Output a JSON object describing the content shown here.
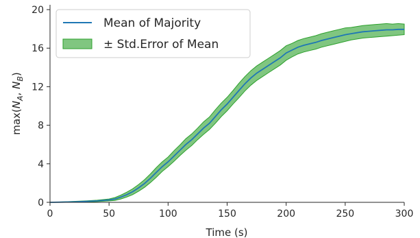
{
  "chart_data": {
    "type": "line",
    "xlabel": "Time (s)",
    "ylabel": "max(N_A, N_B)",
    "ylabel_parts": {
      "prefix": "max(",
      "n1": "N",
      "sub1": "A",
      "sep": ", ",
      "n2": "N",
      "sub2": "B",
      "suffix": ")"
    },
    "xlim": [
      0,
      300
    ],
    "ylim": [
      0,
      20.5
    ],
    "xticks": [
      0,
      50,
      100,
      150,
      200,
      250,
      300
    ],
    "yticks": [
      0,
      4,
      8,
      12,
      16,
      20
    ],
    "grid": false,
    "legend_position": "top-left",
    "series": [
      {
        "name": "Mean of Majority",
        "kind": "line",
        "color": "#1f77b4",
        "x": [
          0,
          10,
          20,
          30,
          40,
          50,
          55,
          60,
          65,
          70,
          75,
          80,
          85,
          90,
          95,
          100,
          105,
          110,
          115,
          120,
          125,
          130,
          135,
          140,
          145,
          150,
          155,
          160,
          165,
          170,
          175,
          180,
          185,
          190,
          195,
          200,
          205,
          210,
          215,
          220,
          225,
          230,
          235,
          240,
          245,
          250,
          255,
          260,
          265,
          270,
          275,
          280,
          285,
          290,
          295,
          300
        ],
        "y": [
          0,
          0.02,
          0.05,
          0.1,
          0.15,
          0.25,
          0.35,
          0.55,
          0.8,
          1.1,
          1.5,
          1.95,
          2.5,
          3.1,
          3.7,
          4.2,
          4.8,
          5.4,
          6.0,
          6.5,
          7.1,
          7.7,
          8.2,
          8.9,
          9.6,
          10.2,
          10.9,
          11.6,
          12.3,
          12.9,
          13.4,
          13.8,
          14.2,
          14.6,
          15.0,
          15.5,
          15.8,
          16.1,
          16.3,
          16.45,
          16.6,
          16.8,
          16.95,
          17.1,
          17.25,
          17.4,
          17.5,
          17.6,
          17.7,
          17.75,
          17.8,
          17.85,
          17.9,
          17.9,
          17.95,
          17.95
        ]
      },
      {
        "name": "± Std.Error of Mean",
        "kind": "band",
        "color": "#2ca02c",
        "x": [
          0,
          10,
          20,
          30,
          40,
          50,
          55,
          60,
          65,
          70,
          75,
          80,
          85,
          90,
          95,
          100,
          105,
          110,
          115,
          120,
          125,
          130,
          135,
          140,
          145,
          150,
          155,
          160,
          165,
          170,
          175,
          180,
          185,
          190,
          195,
          200,
          205,
          210,
          215,
          220,
          225,
          230,
          235,
          240,
          245,
          250,
          255,
          260,
          265,
          270,
          275,
          280,
          285,
          290,
          295,
          300
        ],
        "lower": [
          0,
          0.0,
          0.0,
          0.05,
          0.08,
          0.15,
          0.2,
          0.35,
          0.55,
          0.8,
          1.15,
          1.55,
          2.05,
          2.6,
          3.2,
          3.7,
          4.25,
          4.85,
          5.4,
          5.9,
          6.5,
          7.05,
          7.55,
          8.2,
          8.9,
          9.5,
          10.2,
          10.85,
          11.55,
          12.15,
          12.65,
          13.05,
          13.45,
          13.85,
          14.25,
          14.75,
          15.1,
          15.4,
          15.6,
          15.75,
          15.9,
          16.1,
          16.25,
          16.4,
          16.55,
          16.7,
          16.85,
          16.95,
          17.05,
          17.1,
          17.15,
          17.2,
          17.25,
          17.3,
          17.35,
          17.4
        ],
        "upper": [
          0,
          0.04,
          0.1,
          0.15,
          0.22,
          0.35,
          0.5,
          0.75,
          1.05,
          1.4,
          1.85,
          2.35,
          2.95,
          3.6,
          4.2,
          4.7,
          5.35,
          5.95,
          6.6,
          7.1,
          7.7,
          8.35,
          8.85,
          9.6,
          10.3,
          10.9,
          11.6,
          12.35,
          13.05,
          13.65,
          14.15,
          14.55,
          14.95,
          15.35,
          15.75,
          16.25,
          16.5,
          16.8,
          17.0,
          17.15,
          17.3,
          17.5,
          17.65,
          17.8,
          17.95,
          18.1,
          18.15,
          18.25,
          18.35,
          18.4,
          18.45,
          18.5,
          18.55,
          18.5,
          18.55,
          18.5
        ]
      }
    ]
  }
}
